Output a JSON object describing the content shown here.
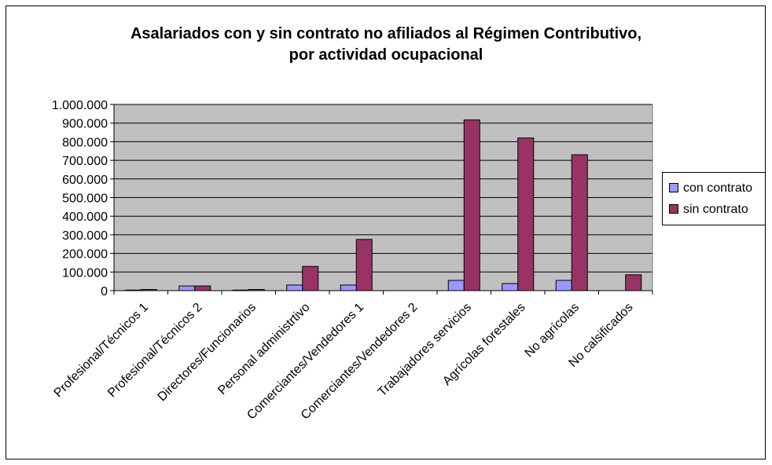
{
  "chart_data": {
    "type": "bar",
    "title_line1": "Asalariados con y sin contrato no afiliados al Régimen Contributivo,",
    "title_line2": "por actividad ocupacional",
    "categories": [
      "Profesional/Técnicos 1",
      "Profesional/Técnicos 2",
      "Directores/Funcionarios",
      "Personal administrtivo",
      "Comerciantes/Vendedores 1",
      "Comerciantes/Vendedores 2",
      "Trabajadores servicios",
      "Agrícolas forestales",
      "No agrícolas",
      "No calsificados"
    ],
    "series": [
      {
        "name": "con contrato",
        "color": "#9999ff",
        "values": [
          3000,
          25000,
          3000,
          30000,
          30000,
          0,
          55000,
          38000,
          55000,
          0
        ]
      },
      {
        "name": "sin contrato",
        "color": "#993366",
        "values": [
          6000,
          25000,
          6000,
          130000,
          275000,
          0,
          917000,
          820000,
          730000,
          85000
        ]
      }
    ],
    "y_ticks": [
      "0",
      "100.000",
      "200.000",
      "300.000",
      "400.000",
      "500.000",
      "600.000",
      "700.000",
      "800.000",
      "900.000",
      "1.000.000"
    ],
    "ylim": [
      0,
      1000000
    ],
    "grid": true,
    "plot_background": "#c0c0c0",
    "legend_position": "right"
  }
}
